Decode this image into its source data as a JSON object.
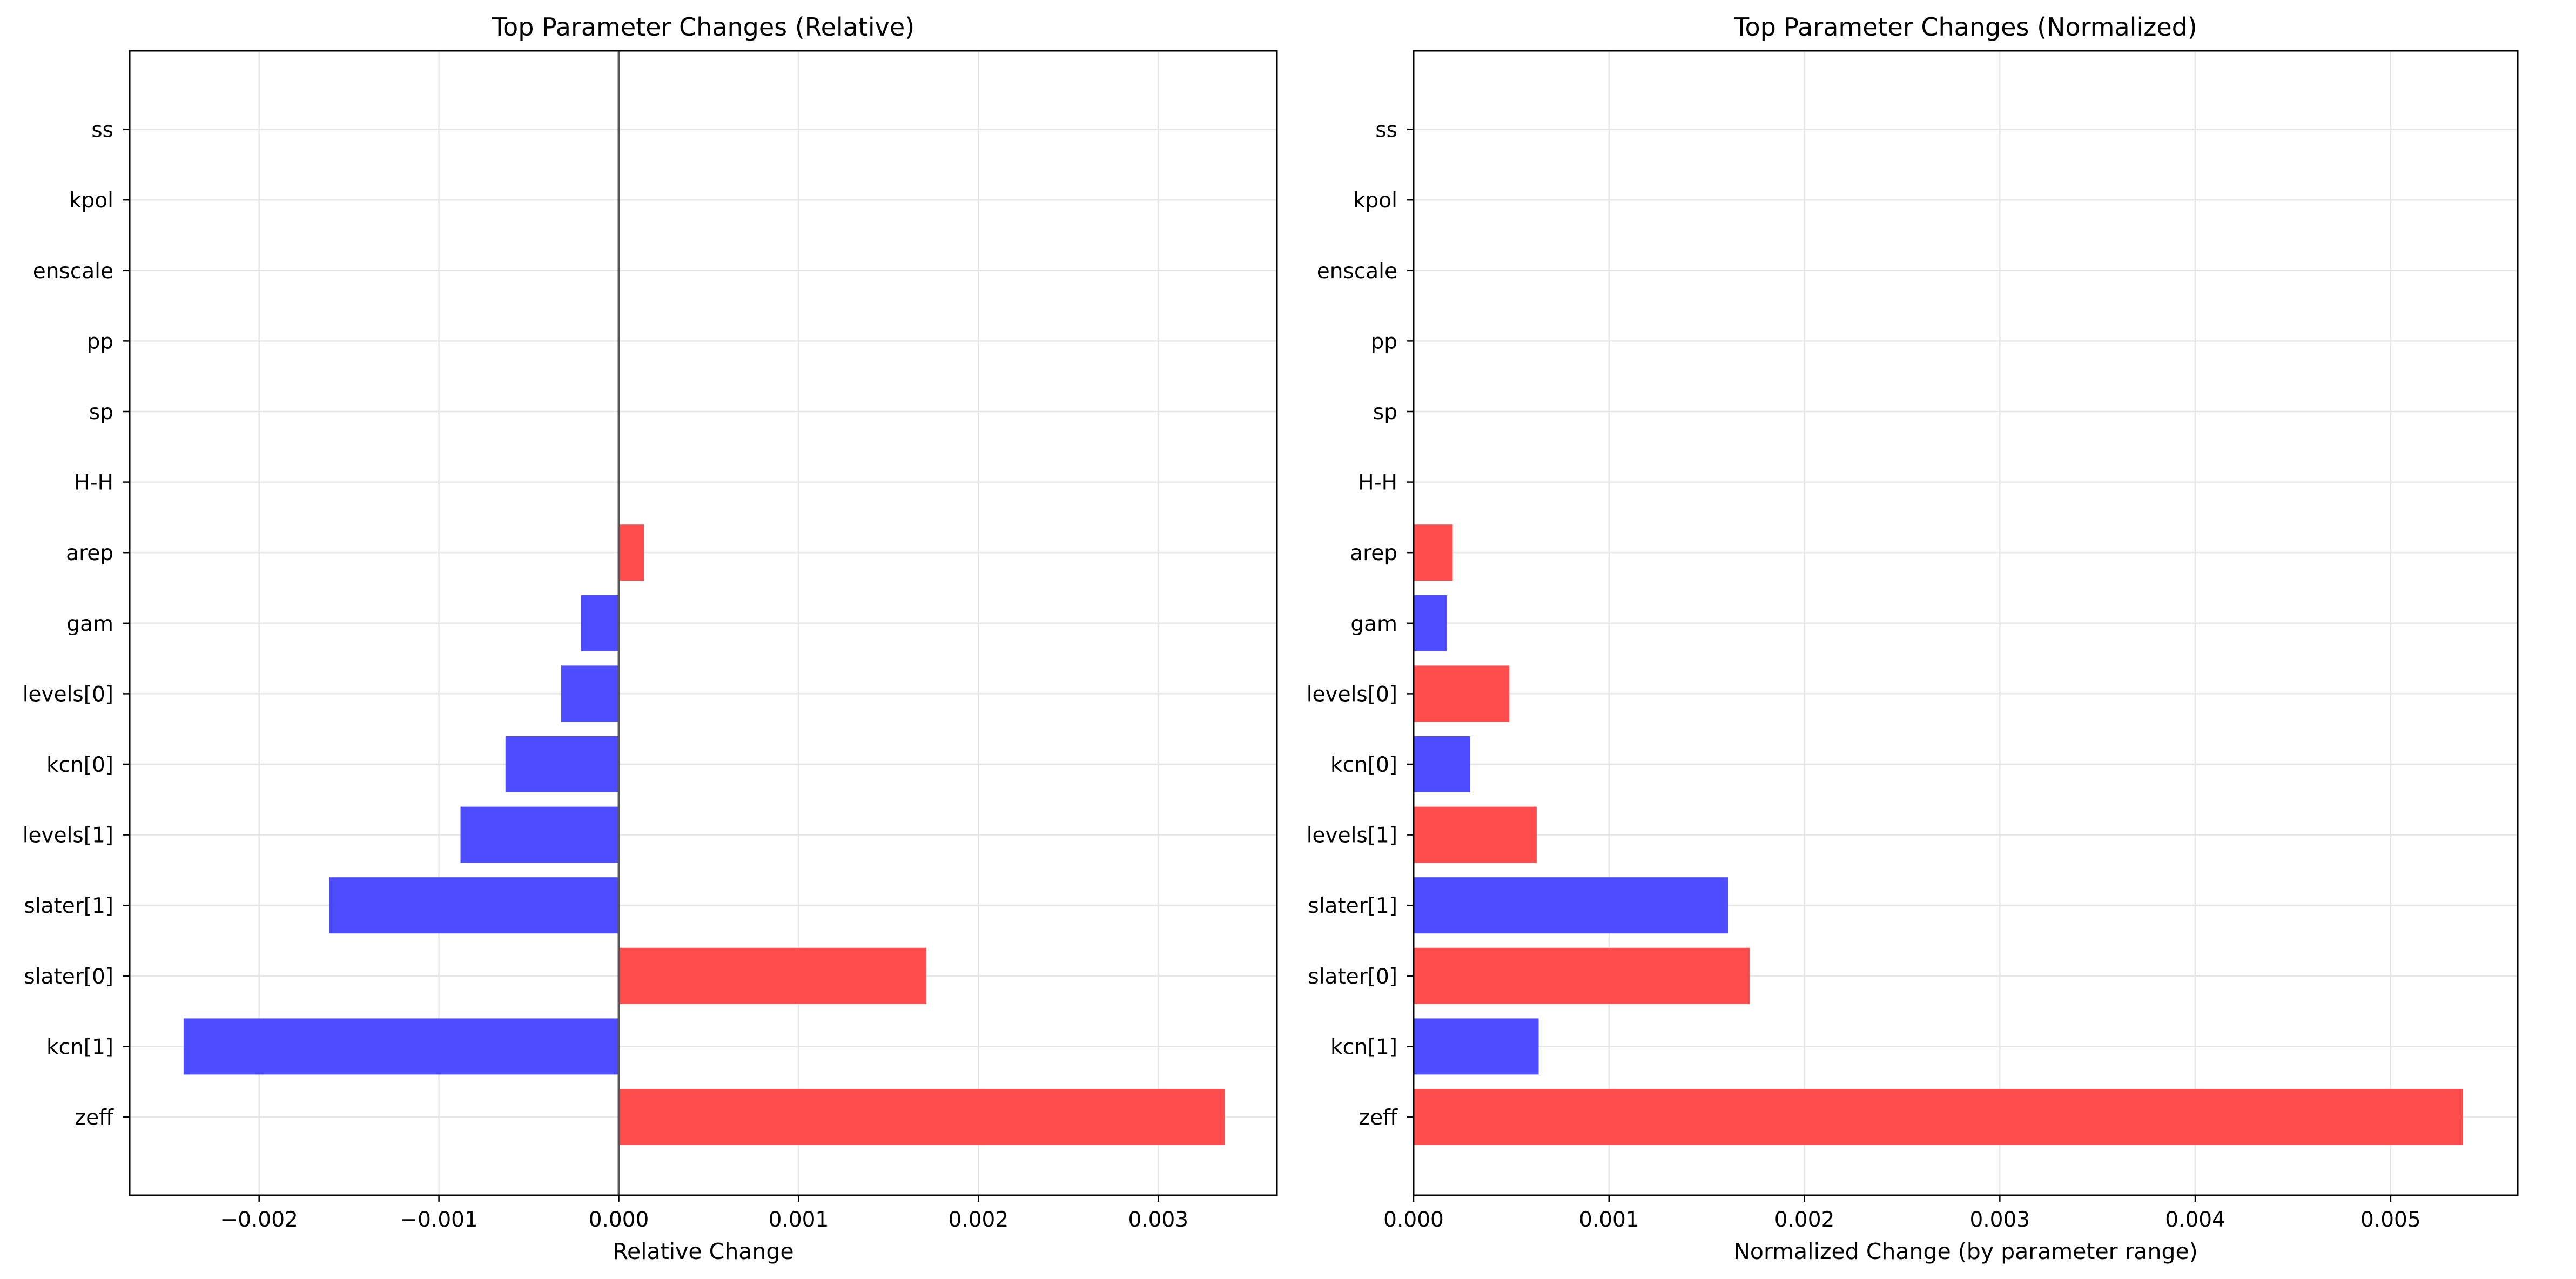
{
  "chart_data": [
    {
      "type": "bar",
      "orientation": "horizontal",
      "title": "Top Parameter Changes (Relative)",
      "xlabel": "Relative Change",
      "ylabel": "",
      "categories": [
        "zeff",
        "kcn[1]",
        "slater[0]",
        "slater[1]",
        "levels[1]",
        "kcn[0]",
        "levels[0]",
        "gam",
        "arep",
        "H-H",
        "sp",
        "pp",
        "enscale",
        "kpol",
        "ss"
      ],
      "values": [
        0.00337,
        -0.00242,
        0.00171,
        -0.00161,
        -0.00088,
        -0.00063,
        -0.00032,
        -0.00021,
        0.00014,
        0,
        0,
        0,
        0,
        0,
        0
      ],
      "xlim": [
        -0.00272,
        0.00366
      ],
      "xticks": [
        -0.002,
        -0.001,
        0.0,
        0.001,
        0.002,
        0.003
      ],
      "xtick_labels": [
        "−0.002",
        "−0.001",
        "0.000",
        "0.001",
        "0.002",
        "0.003"
      ],
      "zero_line": true,
      "grid": true
    },
    {
      "type": "bar",
      "orientation": "horizontal",
      "title": "Top Parameter Changes (Normalized)",
      "xlabel": "Normalized Change (by parameter range)",
      "ylabel": "",
      "categories": [
        "zeff",
        "kcn[1]",
        "slater[0]",
        "slater[1]",
        "levels[1]",
        "kcn[0]",
        "levels[0]",
        "gam",
        "arep",
        "H-H",
        "sp",
        "pp",
        "enscale",
        "kpol",
        "ss"
      ],
      "values": [
        0.00537,
        0.00064,
        0.00172,
        0.00161,
        0.00063,
        0.00029,
        0.00049,
        0.00017,
        0.0002,
        0,
        0,
        0,
        0,
        0,
        0
      ],
      "xlim": [
        0.0,
        0.00565
      ],
      "xticks": [
        0.0,
        0.001,
        0.002,
        0.003,
        0.004,
        0.005
      ],
      "xtick_labels": [
        "0.000",
        "0.001",
        "0.002",
        "0.003",
        "0.004",
        "0.005"
      ],
      "zero_line": false,
      "grid": true
    }
  ],
  "colors": {
    "positive_bar": "#ff4d4d",
    "negative_bar": "#4d4dff",
    "grid": "#e6e6e6",
    "zero_line": "#555555",
    "axes": "#000000"
  },
  "bar_color_rule": {
    "0": "sign_of_value",
    "1": [
      "red",
      "blue",
      "red",
      "blue",
      "red",
      "blue",
      "red",
      "blue",
      "red",
      "red",
      "red",
      "red",
      "red",
      "red",
      "red"
    ]
  }
}
